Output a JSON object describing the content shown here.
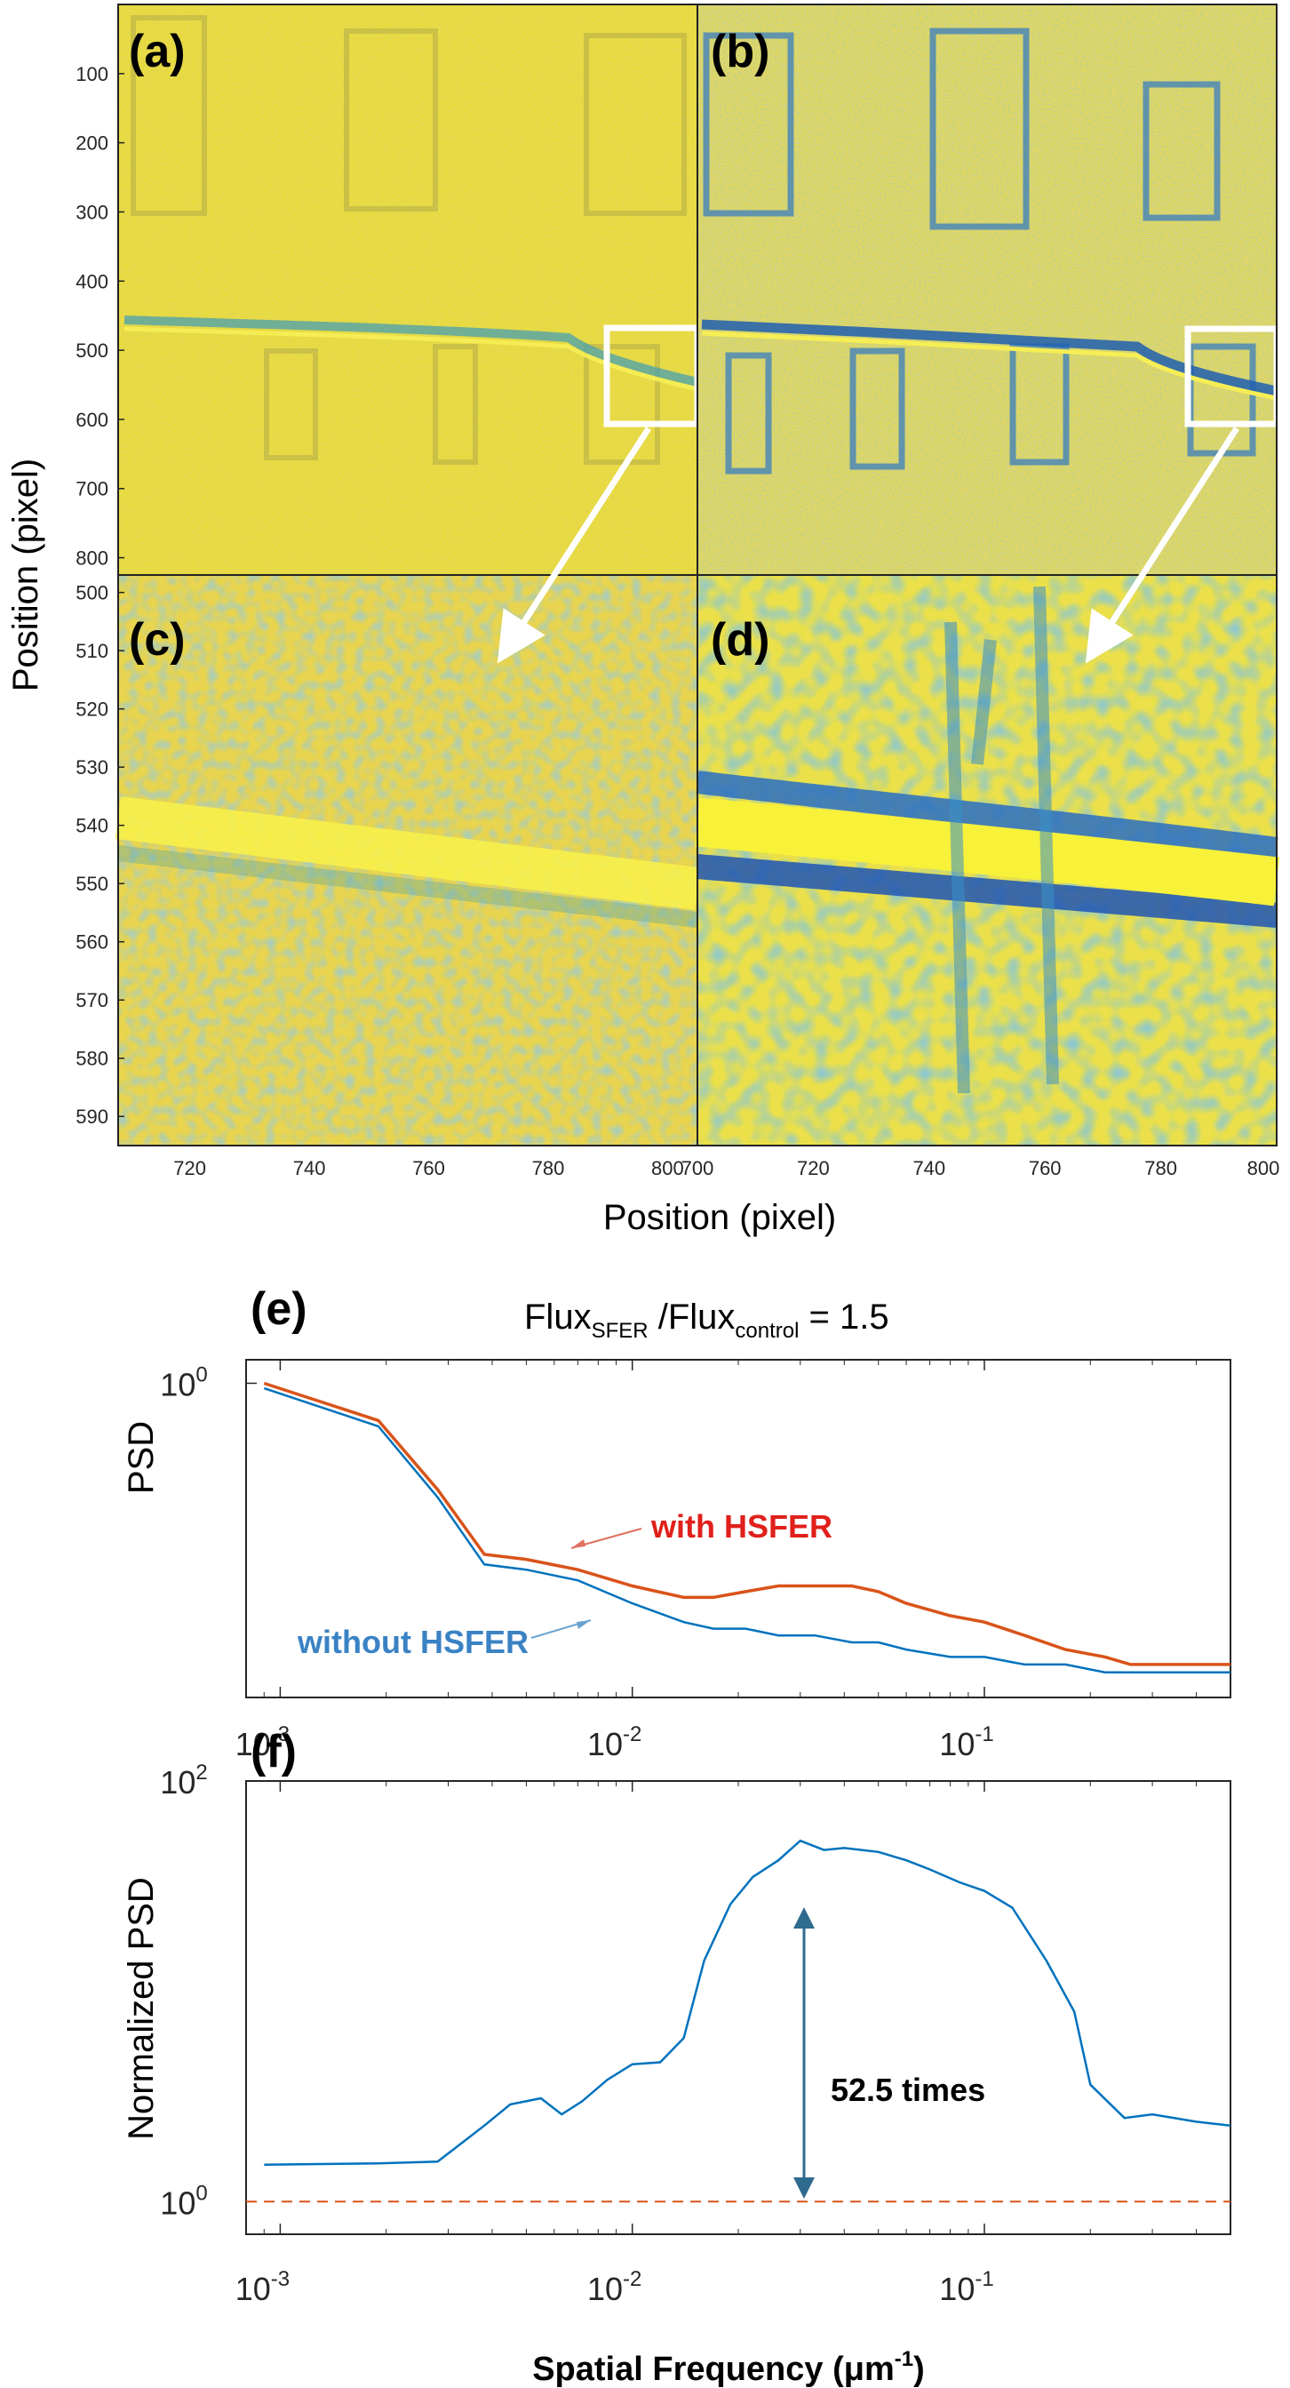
{
  "images": {
    "panel_labels": [
      "(a)",
      "(b)",
      "(c)",
      "(d)"
    ],
    "y_label": "Position (pixel)",
    "x_label": "Position (pixel)",
    "top_yticks": [
      "100",
      "200",
      "300",
      "400",
      "500",
      "600",
      "700",
      "800"
    ],
    "bottom_yticks": [
      "500",
      "510",
      "520",
      "530",
      "540",
      "550",
      "560",
      "570",
      "580",
      "590"
    ],
    "c_xticks": [
      "720",
      "740",
      "760",
      "780",
      "800"
    ],
    "d_xticks": [
      "700",
      "720",
      "740",
      "760",
      "780",
      "800"
    ],
    "colors": {
      "yellow": "#f2e23a",
      "yellow_noise": "#e3cf4f",
      "blue": "#2f78c4",
      "dark_blue": "#1f4fb0",
      "teal": "#3a9bbd"
    }
  },
  "chart_data": [
    {
      "panel": "(e)",
      "type": "line",
      "title_base": "Flux",
      "title_sub1": "SFER",
      "title_mid": " /Flux",
      "title_sub2": "control",
      "title_end": " = 1.5",
      "xlabel": "",
      "ylabel": "PSD",
      "xscale": "log",
      "xlim": [
        0.0008,
        0.5
      ],
      "xticks": [
        {
          "base": "10",
          "exp": "-3"
        },
        {
          "base": "10",
          "exp": "-2"
        },
        {
          "base": "10",
          "exp": "-1"
        }
      ],
      "yticks": [
        {
          "base": "10",
          "exp": "0"
        }
      ],
      "series": [
        {
          "name": "with HSFER",
          "color": "#d95319",
          "x": [
            0.0009,
            0.0019,
            0.0028,
            0.0038,
            0.005,
            0.007,
            0.01,
            0.014,
            0.017,
            0.021,
            0.026,
            0.033,
            0.042,
            0.05,
            0.06,
            0.08,
            0.1,
            0.13,
            0.17,
            0.22,
            0.26,
            0.35,
            0.5
          ],
          "y": [
            1.0,
            0.86,
            0.65,
            0.5,
            0.49,
            0.47,
            0.44,
            0.42,
            0.42,
            0.43,
            0.44,
            0.44,
            0.44,
            0.43,
            0.41,
            0.39,
            0.38,
            0.36,
            0.34,
            0.33,
            0.32,
            0.32,
            0.32
          ]
        },
        {
          "name": "without HSFER",
          "color": "#0072bd",
          "x": [
            0.0009,
            0.0019,
            0.0028,
            0.0038,
            0.005,
            0.007,
            0.01,
            0.014,
            0.017,
            0.021,
            0.026,
            0.033,
            0.042,
            0.05,
            0.06,
            0.08,
            0.1,
            0.13,
            0.17,
            0.22,
            0.26,
            0.35,
            0.5
          ],
          "y": [
            0.98,
            0.84,
            0.63,
            0.48,
            0.47,
            0.45,
            0.41,
            0.38,
            0.37,
            0.37,
            0.36,
            0.36,
            0.35,
            0.35,
            0.34,
            0.33,
            0.33,
            0.32,
            0.32,
            0.31,
            0.31,
            0.31,
            0.31
          ]
        }
      ],
      "annotations": [
        "with HSFER",
        "without HSFER"
      ]
    },
    {
      "panel": "(f)",
      "type": "line",
      "xlabel_base": "Spatial Frequency (",
      "xlabel_mu": "μm",
      "xlabel_exp": "-1",
      "xlabel_end": ")",
      "ylabel": "Normalized PSD",
      "xscale": "log",
      "yscale": "log",
      "xlim": [
        0.0008,
        0.5
      ],
      "ylim": [
        1,
        100
      ],
      "xticks": [
        {
          "base": "10",
          "exp": "-3"
        },
        {
          "base": "10",
          "exp": "-2"
        },
        {
          "base": "10",
          "exp": "-1"
        }
      ],
      "yticks": [
        {
          "base": "10",
          "exp": "2"
        },
        {
          "base": "10",
          "exp": "0"
        }
      ],
      "series": [
        {
          "name": "",
          "color": "#0072bd",
          "x": [
            0.0009,
            0.0019,
            0.0028,
            0.0038,
            0.0045,
            0.0055,
            0.0063,
            0.0072,
            0.0085,
            0.01,
            0.012,
            0.014,
            0.016,
            0.019,
            0.022,
            0.026,
            0.03,
            0.035,
            0.04,
            0.05,
            0.06,
            0.07,
            0.085,
            0.1,
            0.12,
            0.15,
            0.18,
            0.2,
            0.25,
            0.3,
            0.4,
            0.5
          ],
          "y": [
            1.5,
            1.52,
            1.55,
            2.3,
            2.9,
            3.1,
            2.6,
            3.0,
            3.8,
            4.5,
            4.6,
            6.0,
            14,
            26,
            35,
            42,
            52,
            47,
            48,
            46,
            42,
            38,
            33,
            30,
            25,
            14,
            8,
            3.6,
            2.5,
            2.6,
            2.4,
            2.3
          ]
        },
        {
          "name": "",
          "color": "#d95319",
          "dashed": true,
          "x": [
            0.0008,
            0.5
          ],
          "y": [
            1,
            1
          ]
        }
      ],
      "annotation": "52.5 times"
    }
  ]
}
